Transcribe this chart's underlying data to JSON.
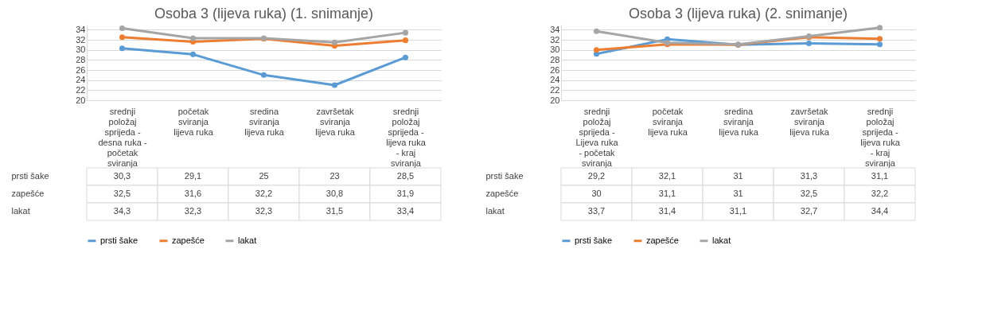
{
  "chart_data": [
    {
      "type": "line",
      "title": "Osoba 3 (lijeva ruka) (1. snimanje)",
      "categories": [
        "srednji položaj sprijeda - desna ruka - početak sviranja",
        "početak sviranja lijeva ruka",
        "sredina sviranja lijeva ruka",
        "završetak sviranja lijeva ruka",
        "srednji položaj sprijeda - lijeva ruka - kraj sviranja"
      ],
      "series": [
        {
          "name": "prsti šake",
          "color": "#5b9bd5",
          "values": [
            30.3,
            29.1,
            25,
            23,
            28.5
          ],
          "value_labels": [
            "30,3",
            "29,1",
            "25",
            "23",
            "28,5"
          ]
        },
        {
          "name": "zapešće",
          "color": "#ed7d31",
          "values": [
            32.5,
            31.6,
            32.2,
            30.8,
            31.9
          ],
          "value_labels": [
            "32,5",
            "31,6",
            "32,2",
            "30,8",
            "31,9"
          ]
        },
        {
          "name": "lakat",
          "color": "#a5a5a5",
          "values": [
            34.3,
            32.3,
            32.3,
            31.5,
            33.4
          ],
          "value_labels": [
            "34,3",
            "32,3",
            "32,3",
            "31,5",
            "33,4"
          ]
        }
      ],
      "ylim": [
        20,
        35
      ],
      "yticks": [
        20,
        22,
        24,
        26,
        28,
        30,
        32,
        34
      ],
      "grid": "y",
      "legend": "bottom",
      "marker": "circle",
      "line_style": "solid"
    },
    {
      "type": "line",
      "title": "Osoba 3 (lijeva ruka) (2. snimanje)",
      "categories": [
        "srednji položaj sprijeda - Lijeva ruka - početak sviranja",
        "početak sviranja lijeva ruka",
        "sredina sviranja lijeva ruka",
        "završetak sviranja lijeva ruka",
        "srednji položaj sprijeda - lijeva ruka - kraj sviranja"
      ],
      "series": [
        {
          "name": "prsti šake",
          "color": "#5b9bd5",
          "values": [
            29.2,
            32.1,
            31,
            31.3,
            31.1
          ],
          "value_labels": [
            "29,2",
            "32,1",
            "31",
            "31,3",
            "31,1"
          ]
        },
        {
          "name": "zapešće",
          "color": "#ed7d31",
          "values": [
            30,
            31.1,
            31,
            32.5,
            32.2
          ],
          "value_labels": [
            "30",
            "31,1",
            "31",
            "32,5",
            "32,2"
          ]
        },
        {
          "name": "lakat",
          "color": "#a5a5a5",
          "values": [
            33.7,
            31.4,
            31.1,
            32.7,
            34.4
          ],
          "value_labels": [
            "33,7",
            "31,4",
            "31,1",
            "32,7",
            "34,4"
          ]
        }
      ],
      "ylim": [
        20,
        35
      ],
      "yticks": [
        20,
        22,
        24,
        26,
        28,
        30,
        32,
        34
      ],
      "grid": "y",
      "legend": "bottom",
      "marker": "circle",
      "line_style": "solid"
    }
  ]
}
